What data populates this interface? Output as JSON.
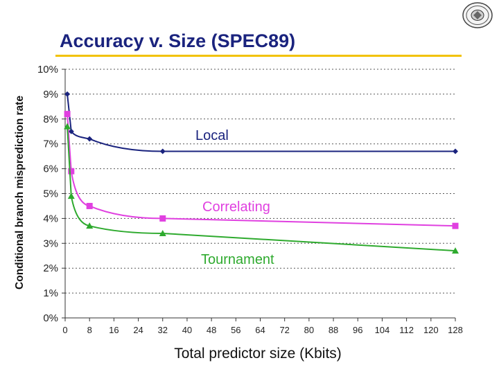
{
  "header": {
    "title": "Accuracy v. Size (SPEC89)",
    "rule_color": "#f2c200",
    "seal_icon": "university-seal-icon"
  },
  "chart_data": {
    "type": "line",
    "title": "Accuracy v. Size (SPEC89)",
    "xlabel": "Total predictor size (Kbits)",
    "ylabel": "Conditional branch misprediction rate",
    "xlim": [
      0,
      128
    ],
    "ylim": [
      0,
      10
    ],
    "xticks": [
      "0",
      "8",
      "16",
      "24",
      "32",
      "40",
      "48",
      "56",
      "64",
      "72",
      "80",
      "88",
      "96",
      "104",
      "112",
      "120",
      "128"
    ],
    "yticks": [
      "0%",
      "1%",
      "2%",
      "3%",
      "4%",
      "5%",
      "6%",
      "7%",
      "8%",
      "9%",
      "10%"
    ],
    "grid": "horizontal-dotted",
    "series": [
      {
        "name": "Local",
        "color": "#1a237e",
        "marker": "diamond",
        "points": [
          [
            0.7,
            9.0
          ],
          [
            2,
            7.5
          ],
          [
            8,
            7.2
          ],
          [
            32,
            6.7
          ],
          [
            128,
            6.7
          ]
        ]
      },
      {
        "name": "Correlating",
        "color": "#e040e0",
        "marker": "square",
        "points": [
          [
            0.7,
            8.2
          ],
          [
            2,
            5.9
          ],
          [
            8,
            4.5
          ],
          [
            32,
            4.0
          ],
          [
            128,
            3.7
          ]
        ]
      },
      {
        "name": "Tournament",
        "color": "#2eaa2e",
        "marker": "triangle",
        "points": [
          [
            0.7,
            7.7
          ],
          [
            2,
            4.9
          ],
          [
            8,
            3.7
          ],
          [
            32,
            3.4
          ],
          [
            128,
            2.7
          ]
        ]
      }
    ]
  }
}
